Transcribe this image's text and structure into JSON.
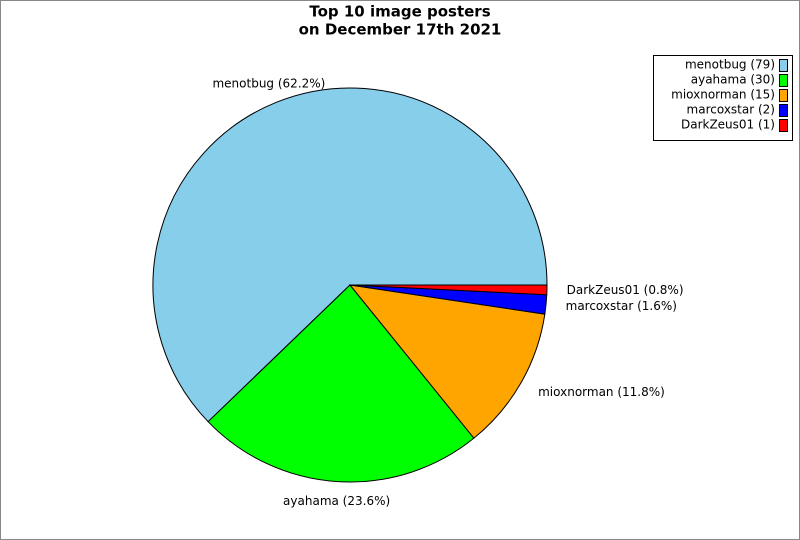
{
  "chart_data": {
    "type": "pie",
    "title": [
      "Top 10 image posters",
      "on December 17th 2021"
    ],
    "labels": [
      "menotbug (79)",
      "ayahama (30)",
      "mioxnorman (15)",
      "marcoxstar (2)",
      "DarkZeus01 (1)"
    ],
    "values": [
      79,
      30,
      15,
      2,
      1
    ],
    "value_labels": [
      "menotbug (62.2%)",
      "ayahama (23.6%)",
      "mioxnorman (11.8%)",
      "marcoxstar (1.6%)",
      "DarkZeus01 (0.8%)"
    ],
    "colors": [
      "#87ceeb",
      "#00ff00",
      "#ffa500",
      "#0000ff",
      "#ff0000"
    ],
    "legend": "upper right"
  }
}
